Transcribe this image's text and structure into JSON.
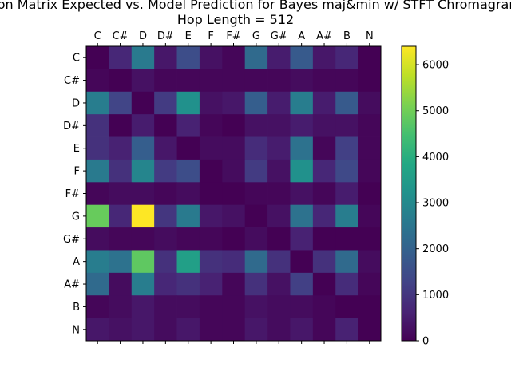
{
  "chart_data": {
    "type": "heatmap",
    "title": "Confusion Matrix Expected vs. Model Prediction for Bayes maj&min w/ STFT Chromagram",
    "subtitle": "Hop Length = 512",
    "xlabel": "",
    "ylabel": "",
    "x_categories": [
      "C",
      "C#",
      "D",
      "D#",
      "E",
      "F",
      "F#",
      "G",
      "G#",
      "A",
      "A#",
      "B",
      "N"
    ],
    "y_categories": [
      "C",
      "C#",
      "D",
      "D#",
      "E",
      "F",
      "F#",
      "G",
      "G#",
      "A",
      "A#",
      "B",
      "N"
    ],
    "colormap": "viridis",
    "colorbar": {
      "min": 0,
      "max": 6400,
      "ticks": [
        0,
        1000,
        2000,
        3000,
        4000,
        5000,
        6000
      ]
    },
    "values": [
      [
        0,
        700,
        2600,
        400,
        1500,
        300,
        100,
        2200,
        500,
        1800,
        400,
        700,
        0
      ],
      [
        100,
        0,
        300,
        100,
        100,
        100,
        100,
        100,
        100,
        200,
        100,
        100,
        0
      ],
      [
        2700,
        1300,
        0,
        1100,
        3200,
        300,
        400,
        1900,
        500,
        2700,
        500,
        1800,
        200
      ],
      [
        900,
        0,
        500,
        0,
        600,
        100,
        0,
        300,
        300,
        500,
        300,
        300,
        100
      ],
      [
        900,
        600,
        1900,
        400,
        0,
        200,
        200,
        800,
        500,
        2400,
        100,
        1200,
        100
      ],
      [
        2600,
        900,
        2900,
        1100,
        1500,
        0,
        200,
        1100,
        300,
        3200,
        700,
        1400,
        100
      ],
      [
        100,
        200,
        200,
        100,
        200,
        0,
        0,
        100,
        100,
        300,
        100,
        500,
        0
      ],
      [
        4900,
        700,
        6400,
        1000,
        2600,
        400,
        300,
        0,
        300,
        2400,
        700,
        2700,
        100
      ],
      [
        200,
        100,
        100,
        200,
        100,
        100,
        0,
        200,
        0,
        600,
        0,
        0,
        0
      ],
      [
        2700,
        2400,
        4800,
        900,
        3600,
        900,
        800,
        2200,
        900,
        0,
        900,
        2200,
        200
      ],
      [
        2200,
        200,
        2700,
        700,
        900,
        600,
        100,
        900,
        300,
        1200,
        0,
        800,
        100
      ],
      [
        100,
        200,
        400,
        200,
        200,
        100,
        100,
        300,
        200,
        200,
        100,
        0,
        0
      ],
      [
        400,
        300,
        400,
        200,
        400,
        100,
        100,
        400,
        200,
        400,
        100,
        600,
        0
      ]
    ]
  }
}
